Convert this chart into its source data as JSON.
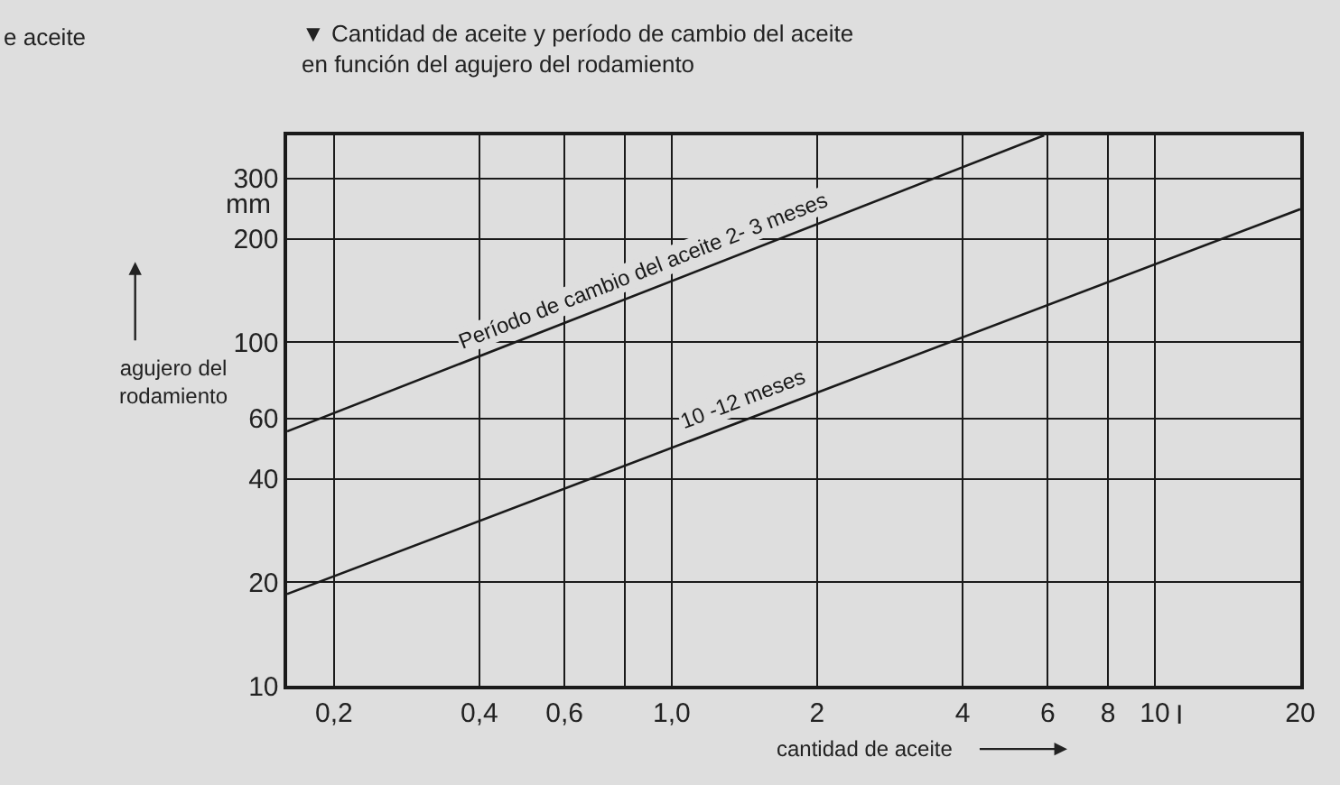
{
  "chart_data": {
    "type": "line",
    "title": "▼ Cantidad de aceite y período de cambio del aceite\nen función del agujero del rodamiento",
    "xlabel": "cantidad de aceite",
    "ylabel": "agujero del\nrodamiento",
    "log": "xy",
    "grid": true,
    "legend": false,
    "marker": "none",
    "line_style": "solid",
    "xlim": [
      0.16,
      20
    ],
    "ylim": [
      10,
      400
    ],
    "xticks": [
      {
        "value": 0.2,
        "label": "0,2"
      },
      {
        "value": 0.4,
        "label": "0,4"
      },
      {
        "value": 0.6,
        "label": "0,6"
      },
      {
        "value": 0.8,
        "label": null
      },
      {
        "value": 1,
        "label": "1,0"
      },
      2,
      4,
      6,
      8,
      10,
      20
    ],
    "yticks": [
      10,
      20,
      40,
      60,
      100,
      200,
      300
    ],
    "series": [
      {
        "name": "Período de cambio del aceite 2- 3 meses",
        "color": "#1a1a1a",
        "x": [
          0.16,
          5.9
        ],
        "values": [
          55,
          400
        ]
      },
      {
        "name": "10 -12 meses",
        "color": "#1a1a1a",
        "x": [
          0.16,
          20
        ],
        "values": [
          18.5,
          244
        ]
      }
    ],
    "annotations": [
      "e aceite",
      "mm",
      "I"
    ]
  }
}
